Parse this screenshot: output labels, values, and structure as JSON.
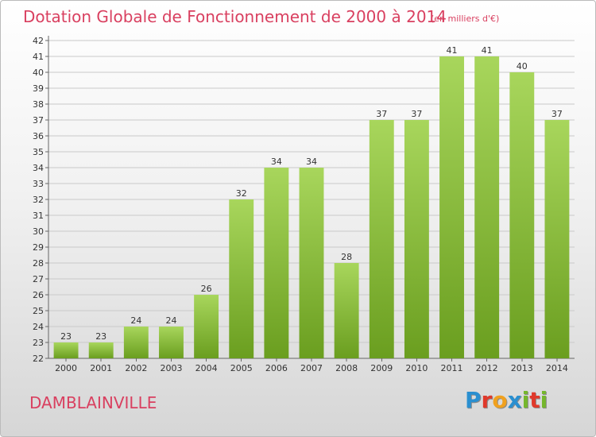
{
  "title": "Dotation Globale de Fonctionnement de 2000 à 2014",
  "subtitle": "(en milliers d'€)",
  "commune": "DAMBLAINVILLE",
  "logo": {
    "letters": [
      "P",
      "r",
      "o",
      "x",
      "i",
      "t",
      "i"
    ],
    "colors": [
      "#2a8fd0",
      "#e0392b",
      "#f0a11f",
      "#2a8fd0",
      "#75b72c",
      "#e0392b",
      "#75b72c"
    ]
  },
  "colors": {
    "bar_light": "#a8d65c",
    "bar_dark": "#6a9e1f",
    "title": "#d94060",
    "grid": "#c9c9c9"
  },
  "chart_data": {
    "type": "bar",
    "categories": [
      "2000",
      "2001",
      "2002",
      "2003",
      "2004",
      "2005",
      "2006",
      "2007",
      "2008",
      "2009",
      "2010",
      "2011",
      "2012",
      "2013",
      "2014"
    ],
    "values": [
      23,
      23,
      24,
      24,
      26,
      32,
      34,
      34,
      28,
      37,
      37,
      41,
      41,
      40,
      37
    ],
    "title": "Dotation Globale de Fonctionnement de 2000 à 2014",
    "xlabel": "",
    "ylabel": "",
    "ylim": [
      22,
      42
    ],
    "yticks": [
      22,
      23,
      24,
      25,
      26,
      27,
      28,
      29,
      30,
      31,
      32,
      33,
      34,
      35,
      36,
      37,
      38,
      39,
      40,
      41,
      42
    ],
    "grid": true
  }
}
